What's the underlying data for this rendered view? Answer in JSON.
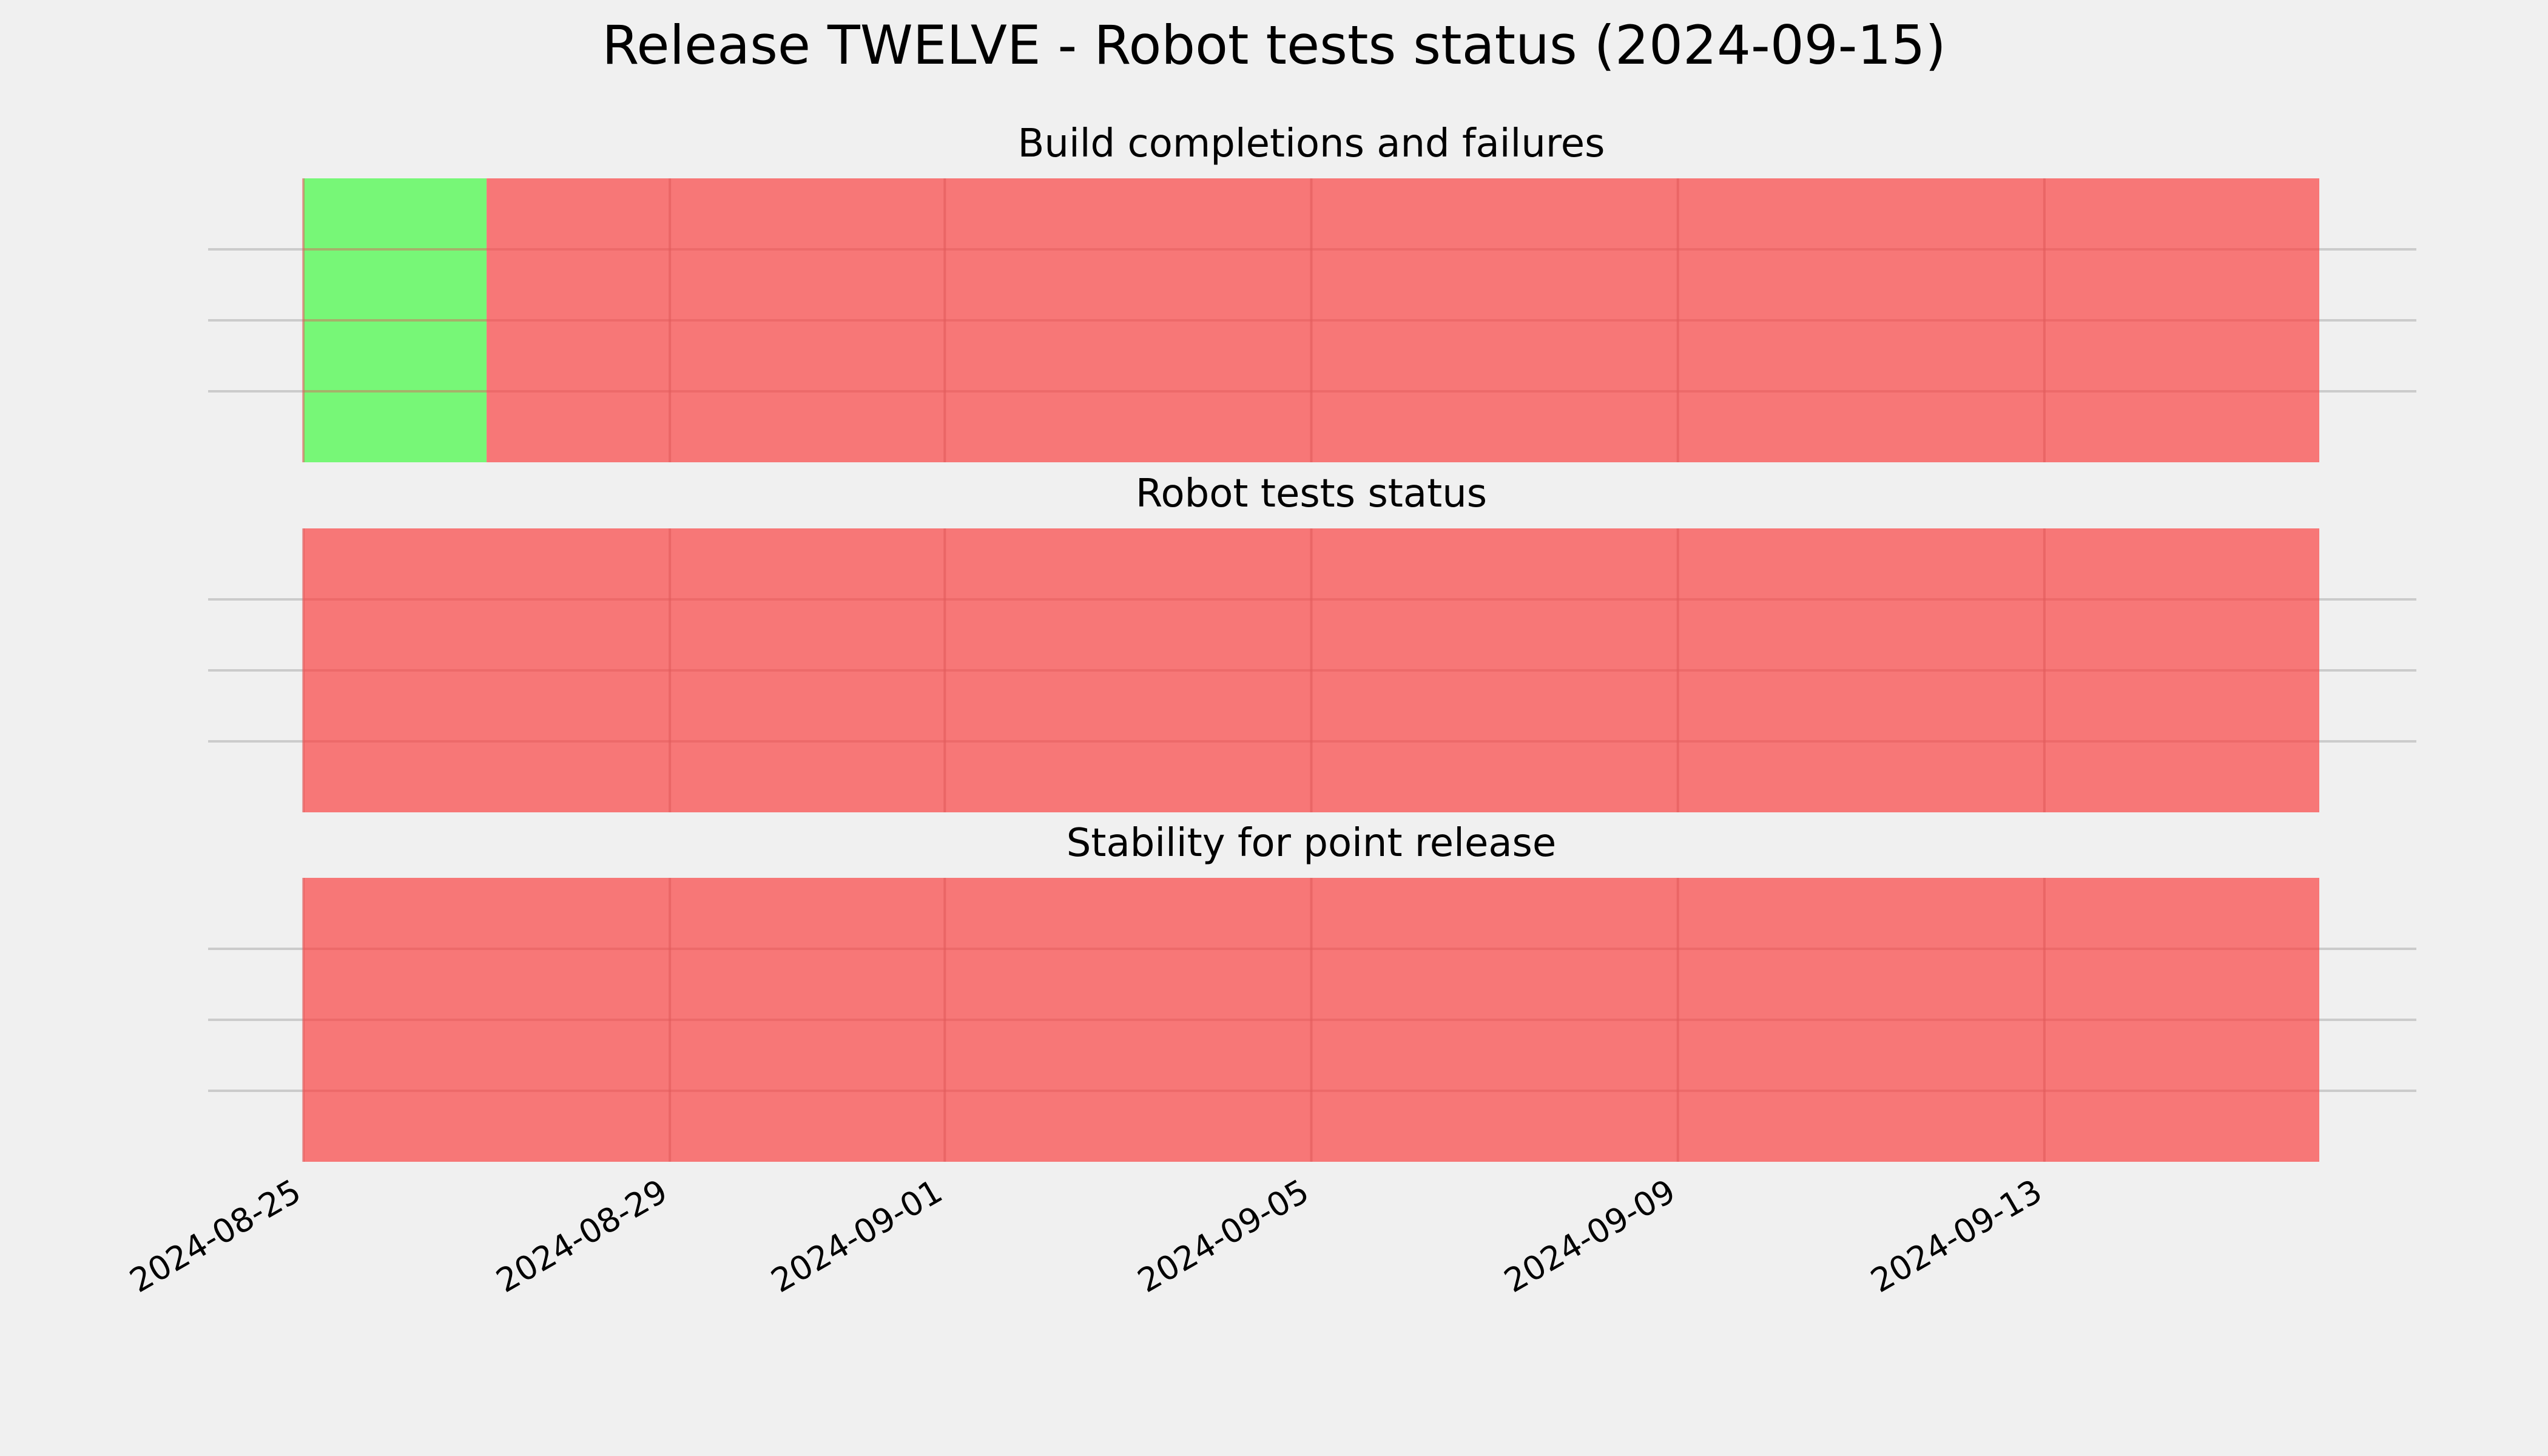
{
  "title": "Release TWELVE - Robot tests status (2024-09-15)",
  "chart_data": [
    {
      "type": "timeline",
      "title": "Build completions and failures",
      "xlim": [
        "2024-08-25",
        "2024-09-16"
      ],
      "segments": [
        {
          "start": "2024-08-25",
          "end": "2024-08-27",
          "status": "pass",
          "color": "#77f777"
        },
        {
          "start": "2024-08-27",
          "end": "2024-09-16",
          "status": "fail",
          "color": "#f77777"
        }
      ],
      "grid": true
    },
    {
      "type": "timeline",
      "title": "Robot tests status",
      "xlim": [
        "2024-08-25",
        "2024-09-16"
      ],
      "segments": [
        {
          "start": "2024-08-25",
          "end": "2024-09-16",
          "status": "fail",
          "color": "#f77777"
        }
      ],
      "grid": true
    },
    {
      "type": "timeline",
      "title": "Stability for point release",
      "xlim": [
        "2024-08-25",
        "2024-09-16"
      ],
      "segments": [
        {
          "start": "2024-08-25",
          "end": "2024-09-16",
          "status": "fail",
          "color": "#f77777"
        }
      ],
      "grid": true
    }
  ],
  "x_ticks": [
    "2024-08-25",
    "2024-08-29",
    "2024-09-01",
    "2024-09-05",
    "2024-09-09",
    "2024-09-13"
  ],
  "colors": {
    "background": "#f0f0f0",
    "pass": "#77f777",
    "fail": "#f77777",
    "grid": "#cbcbcb"
  }
}
